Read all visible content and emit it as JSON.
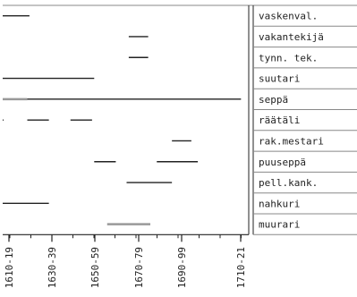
{
  "chart_data": {
    "type": "timeline",
    "title": "",
    "xlabel": "",
    "ylabel": "",
    "x_ticks": [
      "1610-19",
      "1630-39",
      "1650-59",
      "1670-79",
      "1690-99",
      "1710-21"
    ],
    "xlim": [
      1605,
      1721
    ],
    "grid": true,
    "legend": "none",
    "colors": {
      "line": "#222222",
      "highlight": "#999999",
      "grid": "#888888"
    },
    "rows": [
      {
        "label": "vaskenval.",
        "segments": [
          {
            "start": 1603,
            "end": 1624,
            "style": "dark"
          }
        ]
      },
      {
        "label": "vakantekijä",
        "segments": [
          {
            "start": 1670,
            "end": 1679,
            "style": "dark"
          }
        ]
      },
      {
        "label": "tynn. tek.",
        "segments": [
          {
            "start": 1670,
            "end": 1679,
            "style": "dark"
          }
        ]
      },
      {
        "label": "suutari",
        "segments": [
          {
            "start": 1603,
            "end": 1654,
            "style": "dark"
          }
        ]
      },
      {
        "label": "seppä",
        "segments": [
          {
            "start": 1603,
            "end": 1623,
            "style": "highlight"
          },
          {
            "start": 1623,
            "end": 1722,
            "style": "dark"
          }
        ]
      },
      {
        "label": "räätäli",
        "segments": [
          {
            "start": 1603,
            "end": 1612,
            "style": "dark"
          },
          {
            "start": 1623,
            "end": 1633,
            "style": "dark"
          },
          {
            "start": 1643,
            "end": 1653,
            "style": "dark"
          }
        ]
      },
      {
        "label": "rak.mestari",
        "segments": [
          {
            "start": 1690,
            "end": 1699,
            "style": "dark"
          }
        ]
      },
      {
        "label": "puuseppä",
        "segments": [
          {
            "start": 1654,
            "end": 1664,
            "style": "dark"
          },
          {
            "start": 1683,
            "end": 1702,
            "style": "dark"
          }
        ]
      },
      {
        "label": "pell.kank.",
        "segments": [
          {
            "start": 1669,
            "end": 1690,
            "style": "dark"
          }
        ]
      },
      {
        "label": "nahkuri",
        "segments": [
          {
            "start": 1603,
            "end": 1633,
            "style": "dark"
          }
        ]
      },
      {
        "label": "muurari",
        "segments": [
          {
            "start": 1660,
            "end": 1680,
            "style": "highlight"
          }
        ]
      }
    ]
  }
}
